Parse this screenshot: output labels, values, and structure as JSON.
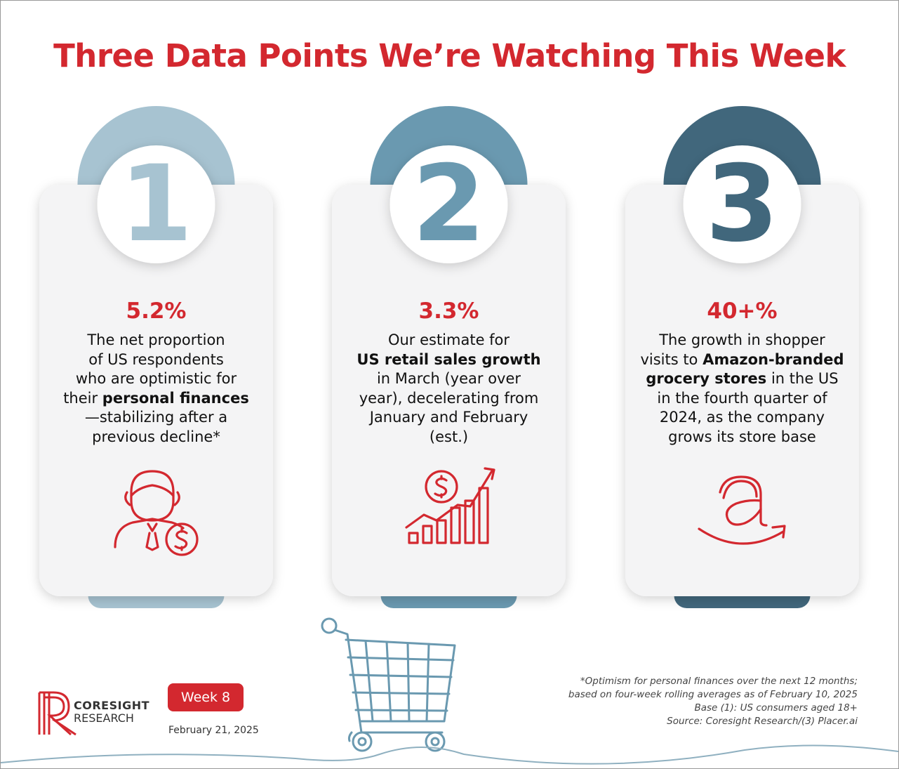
{
  "title": "Three Data Points We’re Watching This Week",
  "cards": [
    {
      "number": "1",
      "color": "#a7c3d1",
      "stat": "5.2%",
      "lines": [
        [
          {
            "text": "The net proportion",
            "bold": false
          }
        ],
        [
          {
            "text": "of US respondents",
            "bold": false
          }
        ],
        [
          {
            "text": "who are optimistic for",
            "bold": false
          }
        ],
        [
          {
            "text": "their ",
            "bold": false
          },
          {
            "text": "personal finances",
            "bold": true
          }
        ],
        [
          {
            "text": "—stabilizing after a",
            "bold": false
          }
        ],
        [
          {
            "text": "previous decline*",
            "bold": false
          }
        ]
      ]
    },
    {
      "number": "2",
      "color": "#6a99b0",
      "stat": "3.3%",
      "lines": [
        [
          {
            "text": "Our estimate for",
            "bold": false
          }
        ],
        [
          {
            "text": "US retail sales growth",
            "bold": true
          }
        ],
        [
          {
            "text": "in March (year over",
            "bold": false
          }
        ],
        [
          {
            "text": "year), decelerating from",
            "bold": false
          }
        ],
        [
          {
            "text": "January and February",
            "bold": false
          }
        ],
        [
          {
            "text": "(est.)",
            "bold": false
          }
        ]
      ]
    },
    {
      "number": "3",
      "color": "#41677c",
      "stat": "40+%",
      "lines": [
        [
          {
            "text": "The growth in shopper",
            "bold": false
          }
        ],
        [
          {
            "text": "visits to ",
            "bold": false
          },
          {
            "text": "Amazon-branded",
            "bold": true
          }
        ],
        [
          {
            "text": "grocery stores",
            "bold": true
          },
          {
            "text": " in the US",
            "bold": false
          }
        ],
        [
          {
            "text": "in the fourth quarter of",
            "bold": false
          }
        ],
        [
          {
            "text": "2024, as the company",
            "bold": false
          }
        ],
        [
          {
            "text": "grows its store base",
            "bold": false
          }
        ]
      ]
    }
  ],
  "footer": {
    "logo": {
      "line1": "CORESIGHT",
      "line2": "RESEARCH"
    },
    "week": "Week 8",
    "date": "February 21, 2025",
    "notes": [
      "*Optimism for personal finances over the next 12 months;",
      "based on four-week rolling averages as of February 10, 2025",
      "Base (1): US consumers aged 18+",
      "Source: Coresight Research/(3) Placer.ai"
    ]
  }
}
